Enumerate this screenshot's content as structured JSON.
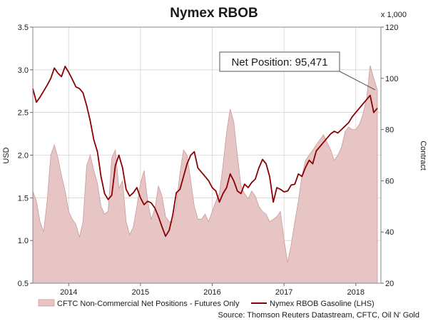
{
  "chart_data": {
    "type": "line",
    "title": "Nymex RBOB",
    "ylabel": "USD",
    "y2label": "Contract",
    "y2_multiplier": "x 1,000",
    "ylim": [
      0.5,
      3.5
    ],
    "y2lim": [
      20,
      120
    ],
    "yticks": [
      "0.5",
      "1.0",
      "1.5",
      "2.0",
      "2.5",
      "3.0",
      "3.5"
    ],
    "y2ticks": [
      "20",
      "40",
      "60",
      "80",
      "100",
      "120"
    ],
    "xlim": [
      2013.5,
      2018.35
    ],
    "xticks": [
      {
        "label": "2014",
        "x": 2014.0
      },
      {
        "label": "2015",
        "x": 2015.0
      },
      {
        "label": "2016",
        "x": 2016.0
      },
      {
        "label": "2017",
        "x": 2017.0
      },
      {
        "label": "2018",
        "x": 2018.0
      }
    ],
    "grid": true,
    "legend": "bottom",
    "annotation": {
      "text": "Net Position: 95,471",
      "x": 2018.27,
      "y2": 95.5
    },
    "source": "Source: Thomson Reuters Datastream, CFTC, Oil N' Gold",
    "series": [
      {
        "name": "CFTC Non-Commercial Net Positions - Futures Only",
        "axis": "right",
        "style": "area",
        "color": "#e8c5c5",
        "edge": "#c99a9a",
        "x": [
          2013.5,
          2013.55,
          2013.6,
          2013.65,
          2013.7,
          2013.75,
          2013.8,
          2013.85,
          2013.9,
          2013.95,
          2014.0,
          2014.05,
          2014.1,
          2014.15,
          2014.2,
          2014.25,
          2014.3,
          2014.35,
          2014.4,
          2014.45,
          2014.5,
          2014.55,
          2014.6,
          2014.65,
          2014.7,
          2014.75,
          2014.8,
          2014.85,
          2014.9,
          2014.95,
          2015.0,
          2015.05,
          2015.1,
          2015.15,
          2015.2,
          2015.25,
          2015.3,
          2015.35,
          2015.4,
          2015.45,
          2015.5,
          2015.55,
          2015.6,
          2015.65,
          2015.7,
          2015.75,
          2015.8,
          2015.85,
          2015.9,
          2015.95,
          2016.0,
          2016.05,
          2016.1,
          2016.15,
          2016.2,
          2016.25,
          2016.3,
          2016.35,
          2016.4,
          2016.45,
          2016.5,
          2016.55,
          2016.6,
          2016.65,
          2016.7,
          2016.75,
          2016.8,
          2016.85,
          2016.9,
          2016.95,
          2017.0,
          2017.05,
          2017.1,
          2017.15,
          2017.2,
          2017.25,
          2017.3,
          2017.35,
          2017.4,
          2017.45,
          2017.5,
          2017.55,
          2017.6,
          2017.65,
          2017.7,
          2017.75,
          2017.8,
          2017.85,
          2017.9,
          2017.95,
          2018.0,
          2018.05,
          2018.1,
          2018.15,
          2018.2,
          2018.25,
          2018.3
        ],
        "values": [
          56,
          52,
          44,
          40,
          52,
          70,
          74,
          69,
          62,
          56,
          48,
          45,
          43,
          38,
          44,
          66,
          70,
          64,
          59,
          50,
          47,
          48,
          69,
          72,
          57,
          60,
          44,
          39,
          42,
          50,
          59,
          64,
          52,
          45,
          49,
          58,
          54,
          46,
          44,
          44,
          51,
          63,
          72,
          70,
          60,
          50,
          45,
          45,
          47,
          44,
          48,
          52,
          55,
          66,
          79,
          88,
          83,
          70,
          58,
          55,
          53,
          56,
          54,
          50,
          48,
          47,
          44,
          45,
          46,
          48,
          37,
          28,
          35,
          44,
          52,
          62,
          68,
          70,
          72,
          74,
          76,
          78,
          75,
          72,
          68,
          70,
          73,
          79,
          81,
          80,
          80,
          82,
          86,
          92,
          105,
          100,
          95.5
        ]
      },
      {
        "name": "Nymex RBOB Gasoline (LHS)",
        "axis": "left",
        "style": "line",
        "color": "#8b0000",
        "x": [
          2013.5,
          2013.55,
          2013.6,
          2013.65,
          2013.7,
          2013.75,
          2013.8,
          2013.85,
          2013.9,
          2013.95,
          2014.0,
          2014.05,
          2014.1,
          2014.15,
          2014.2,
          2014.25,
          2014.3,
          2014.35,
          2014.4,
          2014.45,
          2014.5,
          2014.55,
          2014.6,
          2014.65,
          2014.7,
          2014.75,
          2014.8,
          2014.85,
          2014.9,
          2014.95,
          2015.0,
          2015.05,
          2015.1,
          2015.15,
          2015.2,
          2015.25,
          2015.3,
          2015.35,
          2015.4,
          2015.45,
          2015.5,
          2015.55,
          2015.6,
          2015.65,
          2015.7,
          2015.75,
          2015.8,
          2015.85,
          2015.9,
          2015.95,
          2016.0,
          2016.05,
          2016.1,
          2016.15,
          2016.2,
          2016.25,
          2016.3,
          2016.35,
          2016.4,
          2016.45,
          2016.5,
          2016.55,
          2016.6,
          2016.65,
          2016.7,
          2016.75,
          2016.8,
          2016.85,
          2016.9,
          2016.95,
          2017.0,
          2017.05,
          2017.1,
          2017.15,
          2017.2,
          2017.25,
          2017.3,
          2017.35,
          2017.4,
          2017.45,
          2017.5,
          2017.55,
          2017.6,
          2017.65,
          2017.7,
          2017.75,
          2017.8,
          2017.85,
          2017.9,
          2017.95,
          2018.0,
          2018.05,
          2018.1,
          2018.15,
          2018.2,
          2018.25,
          2018.3
        ],
        "values": [
          2.78,
          2.62,
          2.68,
          2.75,
          2.82,
          2.9,
          3.02,
          2.96,
          2.92,
          3.04,
          2.97,
          2.89,
          2.8,
          2.78,
          2.73,
          2.58,
          2.4,
          2.18,
          2.04,
          1.75,
          1.55,
          1.48,
          1.53,
          1.88,
          2.0,
          1.85,
          1.6,
          1.52,
          1.56,
          1.62,
          1.5,
          1.42,
          1.46,
          1.44,
          1.38,
          1.28,
          1.16,
          1.05,
          1.12,
          1.3,
          1.56,
          1.6,
          1.75,
          1.9,
          2.0,
          2.04,
          1.85,
          1.8,
          1.75,
          1.7,
          1.62,
          1.58,
          1.45,
          1.55,
          1.62,
          1.78,
          1.7,
          1.58,
          1.55,
          1.66,
          1.62,
          1.68,
          1.72,
          1.85,
          1.95,
          1.9,
          1.75,
          1.45,
          1.62,
          1.6,
          1.57,
          1.58,
          1.65,
          1.66,
          1.78,
          1.75,
          1.86,
          1.94,
          1.9,
          2.05,
          2.1,
          2.15,
          2.2,
          2.25,
          2.28,
          2.26,
          2.3,
          2.34,
          2.38,
          2.45,
          2.5,
          2.55,
          2.6,
          2.65,
          2.7,
          2.5,
          2.55
        ]
      }
    ]
  }
}
